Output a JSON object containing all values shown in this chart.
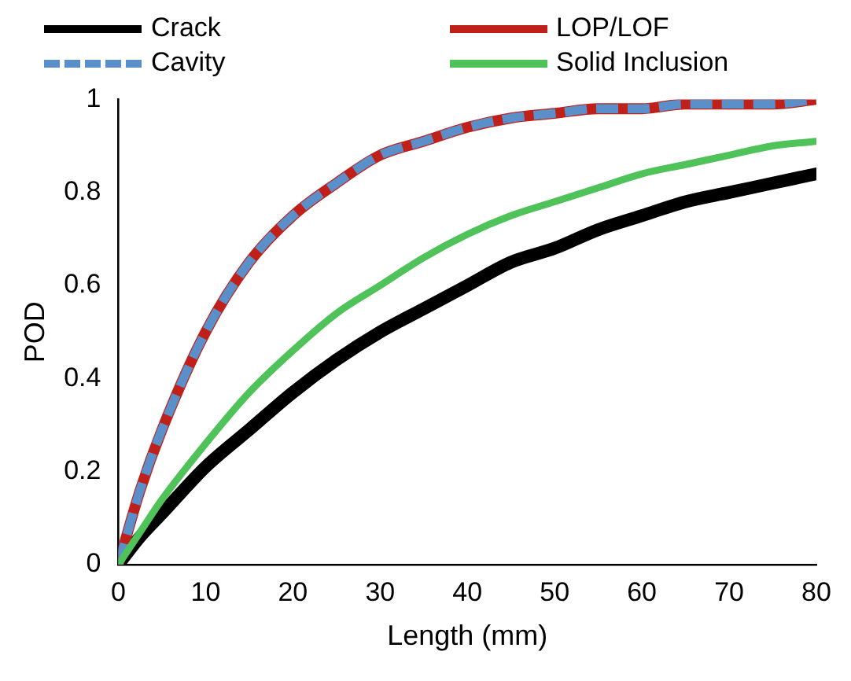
{
  "chart_data": {
    "type": "line",
    "xlabel": "Length (mm)",
    "ylabel": "POD",
    "legend": "top",
    "grid": false,
    "marker": "none",
    "x": [
      0,
      2.5,
      5,
      10,
      15,
      20,
      25,
      30,
      35,
      40,
      45,
      50,
      55,
      60,
      65,
      70,
      75,
      80
    ],
    "xlim": [
      0,
      80
    ],
    "xticks": [
      0,
      10,
      20,
      30,
      40,
      50,
      60,
      70,
      80
    ],
    "ylim": [
      0,
      1
    ],
    "yticks": [
      0,
      0.2,
      0.4,
      0.6,
      0.8,
      1
    ],
    "series": [
      {
        "name": "Crack",
        "color": "#000000",
        "line_style": "solid",
        "values": [
          0,
          0.06,
          0.11,
          0.21,
          0.29,
          0.37,
          0.44,
          0.5,
          0.55,
          0.6,
          0.65,
          0.68,
          0.72,
          0.75,
          0.78,
          0.8,
          0.82,
          0.84
        ]
      },
      {
        "name": "LOP/LOF",
        "color": "#c0201a",
        "line_style": "solid",
        "values": [
          0,
          0.16,
          0.29,
          0.5,
          0.65,
          0.75,
          0.82,
          0.88,
          0.91,
          0.94,
          0.96,
          0.97,
          0.98,
          0.98,
          0.99,
          0.99,
          0.99,
          1.0
        ]
      },
      {
        "name": "Cavity",
        "color": "#5b8fc9",
        "line_style": "dashed",
        "values": [
          0,
          0.16,
          0.29,
          0.5,
          0.65,
          0.75,
          0.82,
          0.88,
          0.91,
          0.94,
          0.96,
          0.97,
          0.98,
          0.98,
          0.99,
          0.99,
          0.99,
          1.0
        ]
      },
      {
        "name": "Solid Inclusion",
        "color": "#4fc35a",
        "line_style": "solid",
        "values": [
          0,
          0.07,
          0.14,
          0.26,
          0.37,
          0.46,
          0.54,
          0.6,
          0.66,
          0.71,
          0.75,
          0.78,
          0.81,
          0.84,
          0.86,
          0.88,
          0.9,
          0.91
        ]
      }
    ]
  }
}
